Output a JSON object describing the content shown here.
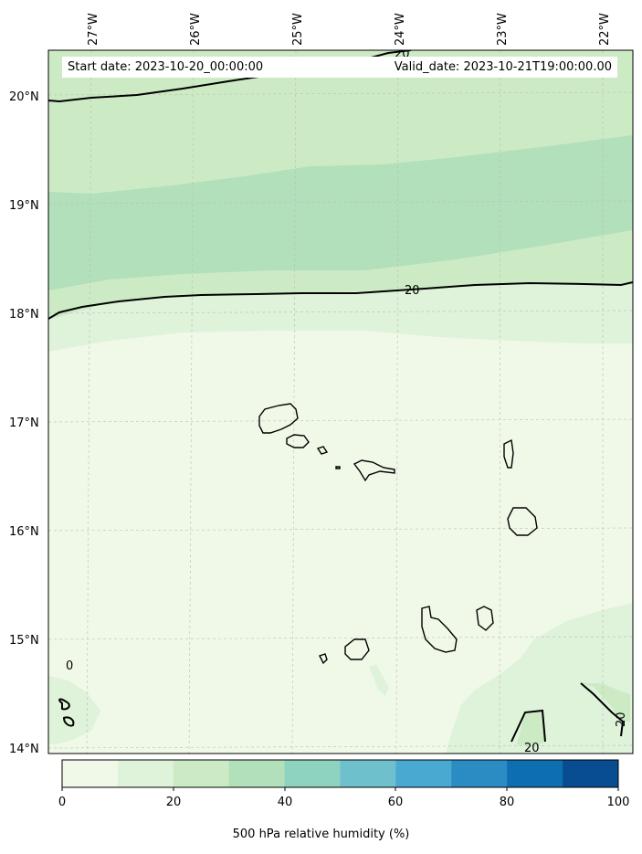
{
  "map": {
    "start_date_text": "Start date: 2023-10-20_00:00:00",
    "valid_date_text": "Valid_date: 2023-10-21T19:00:00.00",
    "lon_labels": [
      "27°W",
      "26°W",
      "25°W",
      "24°W",
      "23°W",
      "22°W"
    ],
    "lat_labels": [
      "20°N",
      "19°N",
      "18°N",
      "17°N",
      "16°N",
      "15°N",
      "14°N"
    ],
    "contour_labels": [
      "20",
      "20",
      "20",
      "20",
      "20",
      "0"
    ],
    "colors": {
      "band_0_10": "#f0f9e8",
      "band_10_20": "#dff2da",
      "band_20_30": "#ccebc5",
      "band_30_40": "#b2e0ba",
      "coast": "#000000"
    }
  },
  "colorbar": {
    "title": "500 hPa relative humidity (%)",
    "tick_labels": [
      "0",
      "20",
      "40",
      "60",
      "80",
      "100"
    ],
    "bands": [
      {
        "from": 0,
        "to": 10,
        "color": "#f0f9e8"
      },
      {
        "from": 10,
        "to": 20,
        "color": "#dff2da"
      },
      {
        "from": 20,
        "to": 30,
        "color": "#ccebc5"
      },
      {
        "from": 30,
        "to": 40,
        "color": "#b2e0ba"
      },
      {
        "from": 40,
        "to": 50,
        "color": "#8dd3c0"
      },
      {
        "from": 50,
        "to": 60,
        "color": "#6ec0cc"
      },
      {
        "from": 60,
        "to": 70,
        "color": "#4aa9d1"
      },
      {
        "from": 70,
        "to": 80,
        "color": "#2b8cc3"
      },
      {
        "from": 80,
        "to": 90,
        "color": "#0d6eb0"
      },
      {
        "from": 90,
        "to": 100,
        "color": "#084d91"
      }
    ]
  }
}
